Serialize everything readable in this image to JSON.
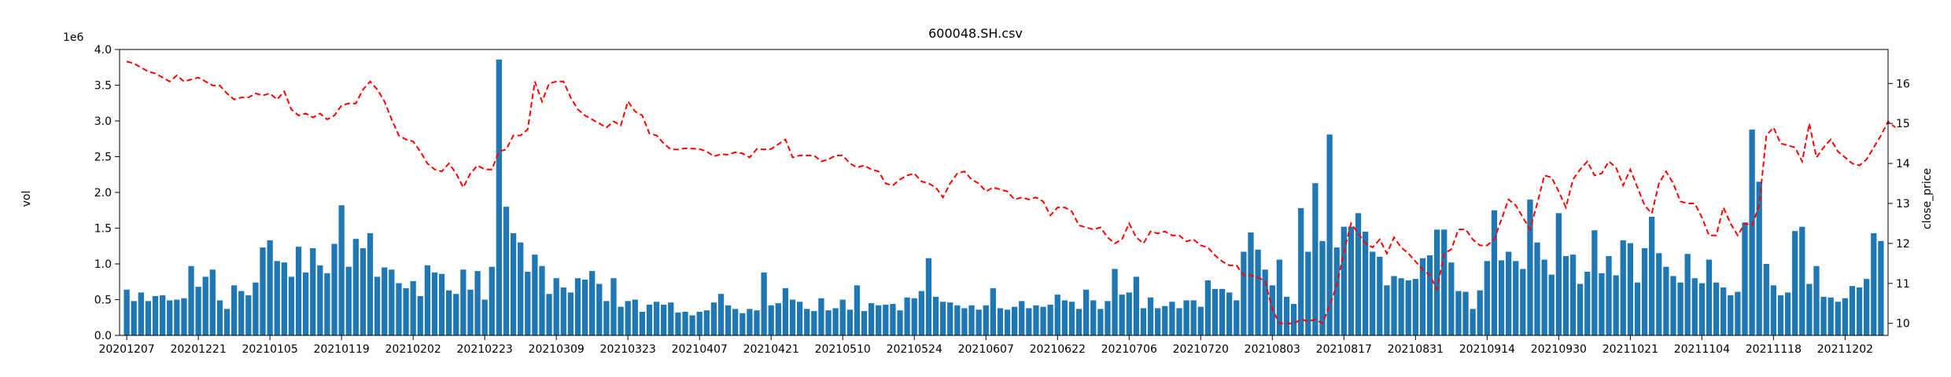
{
  "chart_data": {
    "type": "bar+line",
    "title": "600048.SH.csv",
    "ylabel_left": "vol",
    "ylabel_right": "close_price",
    "y_left_multiplier": "1e6",
    "y_left_ticks": [
      "0.0",
      "0.5",
      "1.0",
      "1.5",
      "2.0",
      "2.5",
      "3.0",
      "3.5",
      "4.0"
    ],
    "y_left_range": [
      0,
      4.0
    ],
    "y_right_ticks": [
      "10",
      "11",
      "12",
      "13",
      "14",
      "15",
      "16"
    ],
    "y_right_range": [
      9.7,
      16.85
    ],
    "x_tick_labels": [
      "20201207",
      "20201221",
      "20210105",
      "20210119",
      "20210202",
      "20210223",
      "20210309",
      "20210323",
      "20210407",
      "20210421",
      "20210510",
      "20210524",
      "20210607",
      "20210622",
      "20210706",
      "20210720",
      "20210803",
      "20210817",
      "20210831",
      "20210914",
      "20210930",
      "20211021",
      "20211104",
      "20211118",
      "20211202"
    ],
    "series": [
      {
        "name": "vol",
        "kind": "bar",
        "color": "#1f77b4",
        "unit": "1e6",
        "values": [
          0.64,
          0.48,
          0.6,
          0.48,
          0.55,
          0.56,
          0.49,
          0.5,
          0.52,
          0.97,
          0.68,
          0.82,
          0.92,
          0.49,
          0.37,
          0.7,
          0.62,
          0.56,
          0.74,
          1.23,
          1.33,
          1.04,
          1.02,
          0.82,
          1.24,
          0.88,
          1.22,
          0.98,
          0.87,
          1.28,
          1.82,
          0.96,
          1.35,
          1.22,
          1.43,
          0.82,
          0.95,
          0.92,
          0.73,
          0.66,
          0.76,
          0.55,
          0.98,
          0.88,
          0.86,
          0.63,
          0.58,
          0.92,
          0.64,
          0.9,
          0.5,
          0.96,
          3.86,
          1.8,
          1.43,
          1.3,
          0.89,
          1.13,
          0.97,
          0.58,
          0.8,
          0.67,
          0.6,
          0.8,
          0.78,
          0.9,
          0.72,
          0.48,
          0.8,
          0.4,
          0.48,
          0.5,
          0.33,
          0.43,
          0.47,
          0.43,
          0.46,
          0.32,
          0.33,
          0.28,
          0.33,
          0.35,
          0.46,
          0.58,
          0.42,
          0.37,
          0.31,
          0.37,
          0.35,
          0.88,
          0.42,
          0.45,
          0.66,
          0.5,
          0.47,
          0.37,
          0.34,
          0.52,
          0.35,
          0.38,
          0.5,
          0.36,
          0.7,
          0.34,
          0.45,
          0.42,
          0.43,
          0.44,
          0.35,
          0.53,
          0.52,
          0.62,
          1.08,
          0.54,
          0.47,
          0.46,
          0.42,
          0.38,
          0.42,
          0.36,
          0.42,
          0.66,
          0.38,
          0.36,
          0.4,
          0.48,
          0.38,
          0.42,
          0.4,
          0.43,
          0.57,
          0.49,
          0.47,
          0.37,
          0.64,
          0.49,
          0.37,
          0.48,
          0.93,
          0.57,
          0.6,
          0.82,
          0.38,
          0.53,
          0.38,
          0.41,
          0.47,
          0.38,
          0.49,
          0.49,
          0.4,
          0.77,
          0.65,
          0.65,
          0.6,
          0.49,
          1.17,
          1.44,
          1.2,
          0.92,
          0.7,
          1.06,
          0.54,
          0.44,
          1.78,
          1.17,
          2.13,
          1.32,
          2.81,
          1.23,
          1.52,
          1.52,
          1.71,
          1.45,
          1.17,
          1.1,
          0.7,
          0.83,
          0.8,
          0.77,
          0.79,
          1.08,
          1.12,
          1.48,
          1.48,
          1.02,
          0.62,
          0.61,
          0.37,
          0.63,
          1.04,
          1.75,
          1.05,
          1.17,
          1.04,
          0.93,
          1.9,
          1.3,
          1.06,
          0.85,
          1.71,
          1.11,
          1.13,
          0.72,
          0.89,
          1.47,
          0.87,
          1.11,
          0.84,
          1.33,
          1.29,
          0.74,
          1.22,
          1.66,
          1.15,
          0.96,
          0.83,
          0.74,
          1.14,
          0.8,
          0.73,
          1.06,
          0.74,
          0.67,
          0.56,
          0.61,
          1.58,
          2.88,
          2.15,
          1.0,
          0.7,
          0.56,
          0.6,
          1.46,
          1.52,
          0.72,
          0.97,
          0.54,
          0.53,
          0.47,
          0.52,
          0.69,
          0.67,
          0.79,
          1.43,
          1.32
        ]
      },
      {
        "name": "close_price",
        "kind": "line",
        "color": "#ff0000",
        "style": "dashed",
        "values": [
          16.55,
          16.5,
          16.4,
          16.3,
          16.25,
          16.15,
          16.05,
          16.2,
          16.05,
          16.1,
          16.15,
          16.05,
          15.95,
          15.95,
          15.75,
          15.6,
          15.65,
          15.65,
          15.75,
          15.7,
          15.75,
          15.6,
          15.8,
          15.35,
          15.2,
          15.25,
          15.15,
          15.25,
          15.1,
          15.2,
          15.45,
          15.5,
          15.5,
          15.85,
          16.05,
          15.85,
          15.55,
          15.1,
          14.7,
          14.6,
          14.55,
          14.3,
          14.0,
          13.85,
          13.8,
          14.0,
          13.75,
          13.4,
          13.75,
          13.95,
          13.85,
          13.85,
          14.3,
          14.35,
          14.7,
          14.7,
          14.85,
          16.05,
          15.55,
          16.0,
          16.05,
          16.05,
          15.65,
          15.35,
          15.2,
          15.1,
          15.0,
          14.9,
          15.05,
          14.95,
          15.55,
          15.3,
          15.2,
          14.75,
          14.7,
          14.5,
          14.35,
          14.35,
          14.38,
          14.37,
          14.36,
          14.3,
          14.18,
          14.23,
          14.22,
          14.28,
          14.25,
          14.15,
          14.36,
          14.35,
          14.36,
          14.48,
          14.6,
          14.15,
          14.2,
          14.2,
          14.2,
          14.05,
          14.1,
          14.2,
          14.2,
          14.0,
          13.9,
          13.95,
          13.85,
          13.8,
          13.5,
          13.45,
          13.6,
          13.7,
          13.75,
          13.55,
          13.5,
          13.4,
          13.15,
          13.5,
          13.75,
          13.8,
          13.6,
          13.5,
          13.3,
          13.4,
          13.35,
          13.3,
          13.1,
          13.15,
          13.1,
          13.15,
          13.05,
          12.7,
          12.9,
          12.9,
          12.8,
          12.45,
          12.4,
          12.35,
          12.4,
          12.15,
          12.0,
          12.1,
          12.5,
          12.15,
          12.0,
          12.3,
          12.25,
          12.3,
          12.2,
          12.2,
          12.05,
          12.1,
          11.95,
          11.9,
          11.7,
          11.55,
          11.45,
          11.45,
          11.2,
          11.2,
          11.15,
          11.05,
          10.35,
          10.0,
          10.0,
          10.0,
          10.1,
          10.05,
          10.1,
          10.0,
          10.45,
          10.95,
          11.8,
          12.5,
          12.25,
          12.0,
          11.9,
          12.1,
          11.75,
          12.15,
          11.9,
          11.75,
          11.55,
          11.35,
          11.2,
          10.85,
          11.75,
          11.85,
          12.35,
          12.35,
          12.1,
          11.95,
          11.95,
          12.1,
          12.6,
          13.1,
          12.95,
          12.65,
          12.35,
          13.0,
          13.7,
          13.65,
          13.3,
          12.9,
          13.6,
          13.85,
          14.05,
          13.7,
          13.75,
          14.05,
          13.9,
          13.45,
          13.85,
          13.4,
          12.95,
          12.75,
          13.5,
          13.8,
          13.5,
          13.05,
          13.0,
          13.0,
          12.65,
          12.2,
          12.2,
          12.9,
          12.5,
          12.2,
          12.5,
          12.45,
          12.95,
          14.7,
          14.9,
          14.5,
          14.45,
          14.4,
          14.05,
          15.0,
          14.15,
          14.4,
          14.6,
          14.3,
          14.15,
          14.0,
          13.95,
          14.1,
          14.4,
          14.7,
          15.05,
          14.9
        ]
      }
    ]
  }
}
